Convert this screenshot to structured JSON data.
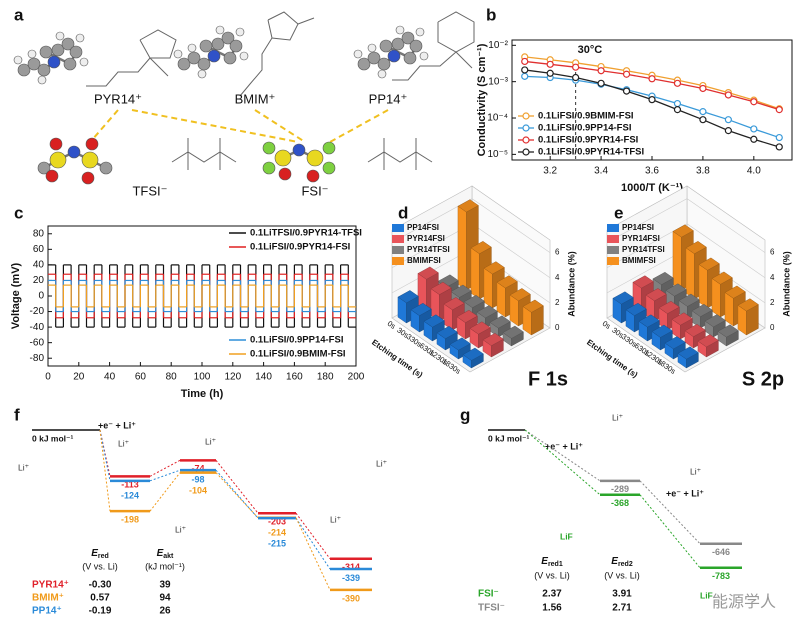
{
  "panel_labels": [
    "a",
    "b",
    "c",
    "d",
    "e",
    "f",
    "g"
  ],
  "structures": {
    "cations": [
      "PYR14⁺",
      "BMIM⁺",
      "PP14⁺"
    ],
    "anions": [
      "TFSI⁻",
      "FSI⁻"
    ]
  },
  "chart_data": [
    {
      "type": "line",
      "xlabel": "1000/T (K⁻¹)",
      "ylabel": "Conductivity (S cm⁻¹)",
      "log_y": true,
      "annotation": {
        "text": "30°C",
        "x": 3.3
      },
      "x": [
        3.1,
        3.2,
        3.3,
        3.4,
        3.5,
        3.6,
        3.7,
        3.8,
        3.9,
        4.0,
        4.1
      ],
      "xlim": [
        3.05,
        4.15
      ],
      "xticks": [
        3.2,
        3.4,
        3.6,
        3.8,
        {
          "value": 4,
          "label": "4.0"
        }
      ],
      "ylim": [
        7e-06,
        0.014
      ],
      "yticks": [
        {
          "value": 1e-05,
          "label": "10⁻⁵"
        },
        {
          "value": 0.0001,
          "label": "10⁻⁴"
        },
        {
          "value": 0.001,
          "label": "10⁻³"
        },
        {
          "value": 0.01,
          "label": "10⁻²"
        }
      ],
      "legend": "lower left",
      "series": [
        {
          "name": "0.1LiFSI/0.9BMIM-FSI",
          "color": "#f0a030",
          "values": [
            0.0048,
            0.004,
            0.0033,
            0.0026,
            0.002,
            0.0015,
            0.0011,
            0.00078,
            0.0005,
            0.00031,
            0.00018
          ]
        },
        {
          "name": "0.1LiFSI/0.9PP14-FSI",
          "color": "#3a9ad9",
          "values": [
            0.0014,
            0.0013,
            0.0011,
            0.00085,
            0.0006,
            0.0004,
            0.00025,
            0.00015,
            9e-05,
            5e-05,
            2.9e-05
          ]
        },
        {
          "name": "0.1LiFSI/0.9PYR14-FSI",
          "color": "#e03030",
          "values": [
            0.0036,
            0.003,
            0.0025,
            0.002,
            0.0016,
            0.0012,
            0.0009,
            0.00065,
            0.00043,
            0.00028,
            0.00017
          ]
        },
        {
          "name": "0.1LiFSI/0.9PYR14-TFSI",
          "color": "#222222",
          "values": [
            0.0021,
            0.0017,
            0.0013,
            0.0009,
            0.00055,
            0.00032,
            0.00017,
            9e-05,
            4.5e-05,
            2.6e-05,
            1.6e-05
          ]
        }
      ]
    },
    {
      "type": "step",
      "xlabel": "Time (h)",
      "ylabel": "Voltage (mV)",
      "x": [
        2.5,
        7.5,
        12.5,
        17.5,
        22.5,
        27.5,
        32.5,
        37.5,
        42.5,
        47.5,
        52.5,
        57.5,
        62.5,
        67.5,
        72.5,
        77.5,
        82.5,
        87.5,
        92.5,
        97.5,
        102.5,
        107.5,
        112.5,
        117.5,
        122.5,
        127.5,
        132.5,
        137.5,
        142.5,
        147.5,
        152.5,
        157.5,
        162.5,
        167.5,
        172.5,
        177.5,
        182.5,
        187.5,
        192.5,
        197.5
      ],
      "xlim": [
        0,
        200
      ],
      "xticks": [
        0,
        20,
        40,
        60,
        80,
        100,
        120,
        140,
        160,
        180,
        200
      ],
      "ylim": [
        -90,
        90
      ],
      "yticks": [
        -80,
        -60,
        -40,
        -20,
        0,
        20,
        40,
        60,
        80
      ],
      "series": [
        {
          "name": "0.1LiTFSI/0.9PYR14-TFSI",
          "color": "#111111",
          "legend": "upper right",
          "values": [
            40,
            -40,
            40,
            -40,
            40,
            -40,
            40,
            -40,
            40,
            -40,
            40,
            -40,
            40,
            -40,
            40,
            -40,
            40,
            -40,
            40,
            -40,
            40,
            -40,
            40,
            -40,
            40,
            -40,
            40,
            -40,
            40,
            -40,
            40,
            -40,
            40,
            -40,
            40,
            -40,
            40,
            -40,
            40,
            -40
          ]
        },
        {
          "name": "0.1LiFSI/0.9PYR14-FSI",
          "color": "#e02020",
          "legend": "upper right",
          "values": [
            28,
            -28,
            28,
            -28,
            28,
            -28,
            28,
            -28,
            28,
            -28,
            28,
            -28,
            28,
            -28,
            28,
            -28,
            28,
            -28,
            28,
            -28,
            28,
            -28,
            28,
            -28,
            28,
            -28,
            28,
            -28,
            28,
            -28,
            28,
            -28,
            28,
            -28,
            28,
            -28,
            28,
            -28,
            28,
            -28
          ]
        },
        {
          "name": "0.1LiFSI/0.9PP14-FSI",
          "color": "#2f8fd8",
          "legend": "lower right",
          "values": [
            20,
            -20,
            20,
            -20,
            20,
            -20,
            20,
            -20,
            20,
            -20,
            20,
            -20,
            20,
            -20,
            20,
            -20,
            20,
            -20,
            20,
            -20,
            20,
            -20,
            20,
            -20,
            20,
            -20,
            20,
            -20,
            20,
            -20,
            20,
            -20,
            20,
            -20,
            20,
            -20,
            20,
            -20,
            20,
            -20
          ]
        },
        {
          "name": "0.1LiFSI/0.9BMIM-FSI",
          "color": "#f0a020",
          "legend": "lower right",
          "values": [
            14,
            -14,
            14,
            -14,
            14,
            -14,
            14,
            -14,
            14,
            -14,
            14,
            -14,
            14,
            -14,
            14,
            -14,
            14,
            -14,
            14,
            -14,
            14,
            -14,
            14,
            -14,
            14,
            -14,
            14,
            -14,
            14,
            -14,
            14,
            -14,
            14,
            -14,
            14,
            -14,
            14,
            -14,
            14,
            -14
          ]
        }
      ]
    },
    {
      "type": "bar3d",
      "label": "F 1s",
      "xlabel": "Etching time (s)",
      "zlabel": "Abundance (%)",
      "categories": [
        "0s",
        "30s",
        "330s",
        "630s",
        "1230s",
        "1830s"
      ],
      "zlim": [
        0,
        7
      ],
      "zticks": [
        0,
        2,
        4,
        6
      ],
      "series": [
        {
          "name": "PP14FSI",
          "color": "#1f78d8",
          "values": [
            1.6,
            1.3,
            1.1,
            0.9,
            0.7,
            0.6
          ]
        },
        {
          "name": "PYR14FSI",
          "color": "#e8545a",
          "values": [
            2.6,
            2.1,
            1.6,
            1.3,
            1.1,
            0.9
          ]
        },
        {
          "name": "PYR14TFSI",
          "color": "#808080",
          "values": [
            1.1,
            1.0,
            0.9,
            0.8,
            0.7,
            0.6
          ]
        },
        {
          "name": "BMIMFSI",
          "color": "#f5901e",
          "values": [
            6.2,
            3.6,
            2.7,
            2.3,
            2.0,
            1.8
          ]
        }
      ]
    },
    {
      "type": "bar3d",
      "label": "S 2p",
      "xlabel": "Etching time (s)",
      "zlabel": "Abundance (%)",
      "categories": [
        "0s",
        "30s",
        "330s",
        "630s",
        "1230s",
        "1830s"
      ],
      "zlim": [
        0,
        7
      ],
      "zticks": [
        0,
        2,
        4,
        6
      ],
      "series": [
        {
          "name": "PP14FSI",
          "color": "#1f78d8",
          "values": [
            1.5,
            1.3,
            1.1,
            1.0,
            0.8,
            0.7
          ]
        },
        {
          "name": "PYR14FSI",
          "color": "#e8545a",
          "values": [
            1.9,
            1.6,
            1.3,
            1.1,
            0.9,
            0.8
          ]
        },
        {
          "name": "PYR14TFSI",
          "color": "#808080",
          "values": [
            1.3,
            1.1,
            1.0,
            0.9,
            0.8,
            0.7
          ]
        },
        {
          "name": "BMIMFSI",
          "color": "#f5901e",
          "values": [
            4.2,
            3.6,
            3.0,
            2.6,
            2.2,
            1.9
          ]
        }
      ]
    },
    {
      "type": "energy",
      "reference": {
        "value": 0,
        "label": "0 kJ mol⁻¹"
      },
      "step_labels": [
        "+e⁻ + Li⁺"
      ],
      "series": [
        {
          "name": "PYR14⁺",
          "color": "#e0202a",
          "values": [
            -113,
            -74,
            -203,
            -314
          ]
        },
        {
          "name": "BMIM⁺",
          "color": "#f09a1a",
          "values": [
            -198,
            -104,
            -214,
            -390
          ]
        },
        {
          "name": "PP14⁺",
          "color": "#2a8ad8",
          "values": [
            -124,
            -98,
            -215,
            -339
          ]
        }
      ],
      "table": {
        "headers": [
          {
            "symbol": "E",
            "sub": "red",
            "unit": "(V vs. Li)"
          },
          {
            "symbol": "E",
            "sub": "akt",
            "unit": "(kJ mol⁻¹)"
          }
        ],
        "rows": [
          [
            "-0.30",
            "39"
          ],
          [
            "0.57",
            "94"
          ],
          [
            "-0.19",
            "26"
          ]
        ]
      },
      "annotations": [
        "Li⁺",
        "Li⁺",
        "Li⁺",
        "Li⁺",
        "Li⁺",
        "Li⁺"
      ]
    },
    {
      "type": "energy",
      "reference": {
        "value": 0,
        "label": "0 kJ mol⁻¹"
      },
      "step_labels": [
        "+e⁻ + Li⁺",
        "+e⁻ + Li⁺"
      ],
      "series": [
        {
          "name": "FSI⁻",
          "color": "#2aa52a",
          "values": [
            -368,
            -783
          ]
        },
        {
          "name": "TFSI⁻",
          "color": "#888888",
          "values": [
            -289,
            -646
          ]
        }
      ],
      "table": {
        "headers": [
          {
            "symbol": "E",
            "sub": "red1",
            "unit": "(V vs. Li)"
          },
          {
            "symbol": "E",
            "sub": "red2",
            "unit": "(V vs. Li)"
          }
        ],
        "rows": [
          [
            "2.37",
            "3.91"
          ],
          [
            "1.56",
            "2.71"
          ]
        ]
      },
      "annotations": [
        "LiF",
        "LiF",
        "Li⁺",
        "Li⁺"
      ]
    }
  ],
  "watermark": "能源学人"
}
